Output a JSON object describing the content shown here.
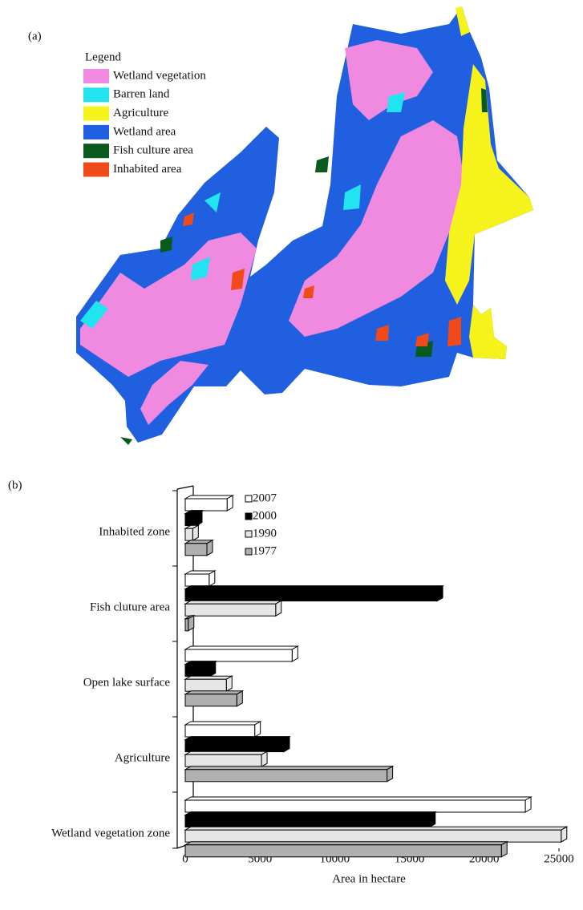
{
  "map": {
    "panel_label": "(a)",
    "legend_title": "Legend",
    "legend": [
      {
        "label": "Wetland vegetation",
        "color": "#f08ae0"
      },
      {
        "label": "Barren land",
        "color": "#22e4f0"
      },
      {
        "label": "Agriculture",
        "color": "#f6f21c"
      },
      {
        "label": "Wetland area",
        "color": "#1f5fe0"
      },
      {
        "label": "Fish culture area",
        "color": "#0a5a1e"
      },
      {
        "label": "Inhabited area",
        "color": "#f04a1a"
      }
    ]
  },
  "chart_data": {
    "type": "bar",
    "orientation": "horizontal",
    "panel_label": "(b)",
    "xlabel": "Area in hectare",
    "categories": [
      "Inhabited zone",
      "Fish cluture area",
      "Open lake surface",
      "Agriculture",
      "Wetland vegetation zone"
    ],
    "series": [
      {
        "name": "2007",
        "color": "#ffffff",
        "values": [
          2800,
          1600,
          7150,
          4650,
          22750
        ]
      },
      {
        "name": "2000",
        "color": "#000000",
        "values": [
          750,
          16850,
          1650,
          6600,
          16350
        ]
      },
      {
        "name": "1990",
        "color": "#e6e6e6",
        "values": [
          500,
          6050,
          2750,
          5100,
          25150
        ]
      },
      {
        "name": "1977",
        "color": "#b0b0b0",
        "values": [
          1450,
          200,
          3450,
          13500,
          21150
        ]
      }
    ],
    "xlim": [
      0,
      25000
    ],
    "xticks": [
      0,
      5000,
      10000,
      15000,
      20000,
      25000
    ],
    "legend": "upper center"
  }
}
